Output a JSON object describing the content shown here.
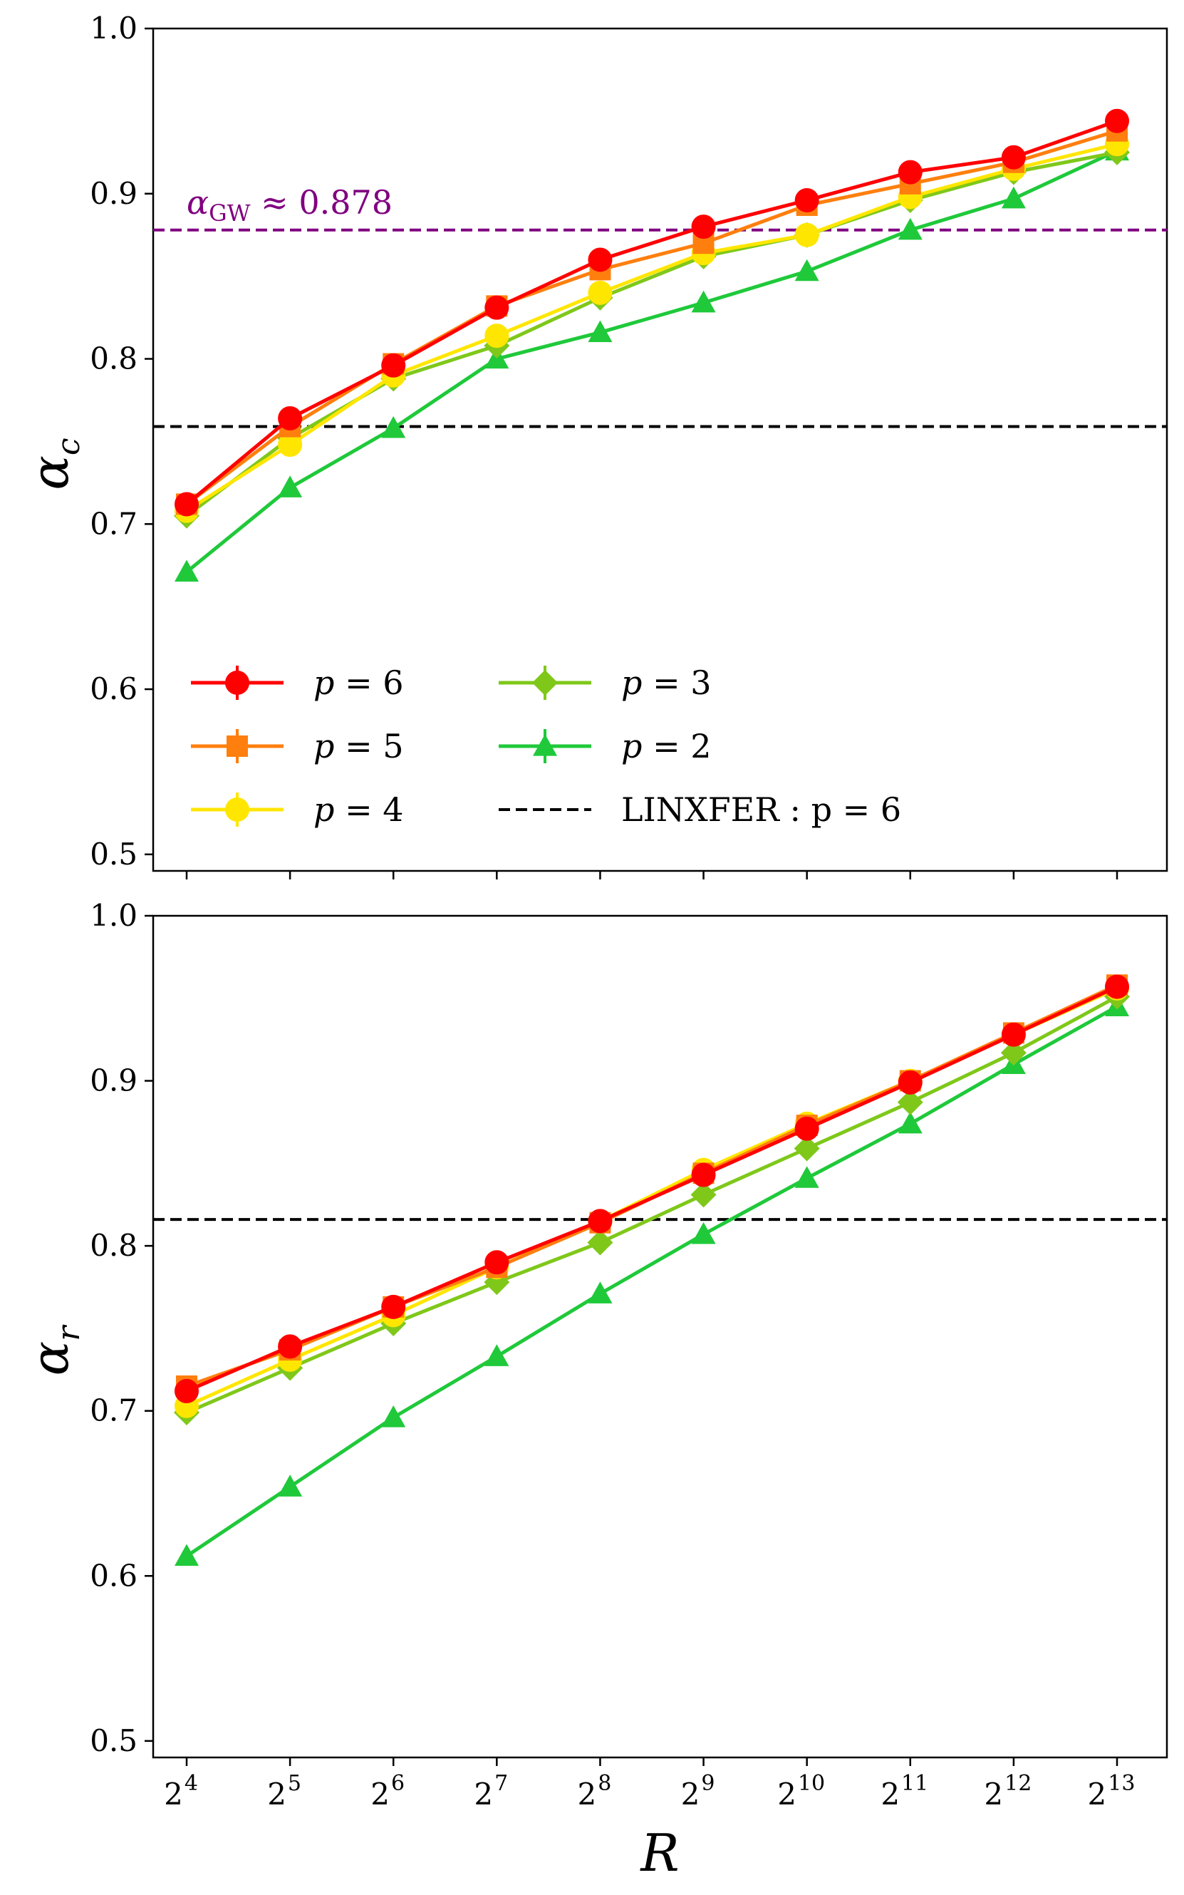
{
  "chart_data": [
    {
      "type": "line",
      "ylabel": "α_c",
      "xscale": "log2",
      "x": [
        16,
        32,
        64,
        128,
        256,
        512,
        1024,
        2048,
        4096,
        8192
      ],
      "xtick_base": "2",
      "xtick_exponents": [
        "4",
        "5",
        "6",
        "7",
        "8",
        "9",
        "10",
        "11",
        "12",
        "13"
      ],
      "yticks": [
        "0.5",
        "0.6",
        "0.7",
        "0.8",
        "0.9",
        "1.0"
      ],
      "ylim": [
        0.49,
        1.0
      ],
      "grid": false,
      "legend_position": "lower-left",
      "series": [
        {
          "name": "p=6",
          "p_value": "6",
          "color": "#ff0000",
          "marker": "circle",
          "values": [
            0.712,
            0.764,
            0.796,
            0.831,
            0.86,
            0.88,
            0.896,
            0.913,
            0.922,
            0.944
          ]
        },
        {
          "name": "p=5",
          "p_value": "5",
          "color": "#ff7f0e",
          "marker": "square",
          "values": [
            0.712,
            0.759,
            0.797,
            0.832,
            0.854,
            0.87,
            0.893,
            0.906,
            0.919,
            0.938
          ]
        },
        {
          "name": "p=4",
          "p_value": "4",
          "color": "#ffe600",
          "marker": "circle",
          "values": [
            0.708,
            0.748,
            0.79,
            0.814,
            0.84,
            0.864,
            0.875,
            0.898,
            0.915,
            0.93
          ]
        },
        {
          "name": "p=3",
          "p_value": "3",
          "color": "#7fc81a",
          "marker": "diamond",
          "values": [
            0.705,
            0.752,
            0.788,
            0.808,
            0.837,
            0.862,
            0.875,
            0.896,
            0.913,
            0.925
          ]
        },
        {
          "name": "p=2",
          "p_value": "2",
          "color": "#1fc93a",
          "marker": "triangle",
          "values": [
            0.671,
            0.722,
            0.758,
            0.8,
            0.816,
            0.834,
            0.853,
            0.878,
            0.897,
            0.926
          ]
        }
      ],
      "reference_lines": [
        {
          "label": "α_GW ≈ 0.878",
          "value": 0.878,
          "color": "#800080",
          "style": "dashed"
        },
        {
          "label": "LINXFER : p = 6",
          "value": 0.759,
          "color": "#000000",
          "style": "dashed"
        }
      ],
      "legend": {
        "p_prefix": "p",
        "equals": "=",
        "reference_entry": "LINXFER : p = 6",
        "reference_entry_word": "LINXFER",
        "reference_entry_rest": " : p = 6"
      },
      "annotation": {
        "symbol": "α",
        "subscript": "GW",
        "relation": "≈",
        "value_text": "0.878"
      }
    },
    {
      "type": "line",
      "ylabel": "α_r",
      "xlabel": "R",
      "xscale": "log2",
      "x": [
        16,
        32,
        64,
        128,
        256,
        512,
        1024,
        2048,
        4096,
        8192
      ],
      "xtick_base": "2",
      "xtick_exponents": [
        "4",
        "5",
        "6",
        "7",
        "8",
        "9",
        "10",
        "11",
        "12",
        "13"
      ],
      "yticks": [
        "0.5",
        "0.6",
        "0.7",
        "0.8",
        "0.9",
        "1.0"
      ],
      "ylim": [
        0.49,
        1.0
      ],
      "grid": false,
      "series": [
        {
          "name": "p=6",
          "color": "#ff0000",
          "marker": "circle",
          "values": [
            0.712,
            0.739,
            0.763,
            0.79,
            0.815,
            0.843,
            0.871,
            0.899,
            0.928,
            0.957
          ]
        },
        {
          "name": "p=5",
          "color": "#ff7f0e",
          "marker": "square",
          "values": [
            0.715,
            0.737,
            0.763,
            0.787,
            0.814,
            0.844,
            0.873,
            0.9,
            0.929,
            0.958
          ]
        },
        {
          "name": "p=4",
          "color": "#ffe600",
          "marker": "circle",
          "values": [
            0.703,
            0.731,
            0.758,
            0.787,
            0.815,
            0.846,
            0.874,
            0.9,
            0.928,
            0.956
          ]
        },
        {
          "name": "p=3",
          "color": "#7fc81a",
          "marker": "diamond",
          "values": [
            0.699,
            0.726,
            0.753,
            0.778,
            0.802,
            0.831,
            0.859,
            0.887,
            0.917,
            0.951
          ]
        },
        {
          "name": "p=2",
          "color": "#1fc93a",
          "marker": "triangle",
          "values": [
            0.612,
            0.654,
            0.696,
            0.733,
            0.771,
            0.807,
            0.841,
            0.874,
            0.91,
            0.945
          ]
        }
      ],
      "reference_lines": [
        {
          "label": "LINXFER : p = 6",
          "value": 0.816,
          "color": "#000000",
          "style": "dashed"
        }
      ],
      "axis_title": {
        "ylabel_symbol": "α",
        "ylabel_sub": "r",
        "xlabel": "R"
      }
    }
  ],
  "panel1_labels": {
    "ylabel_symbol": "α",
    "ylabel_sub": "c"
  }
}
